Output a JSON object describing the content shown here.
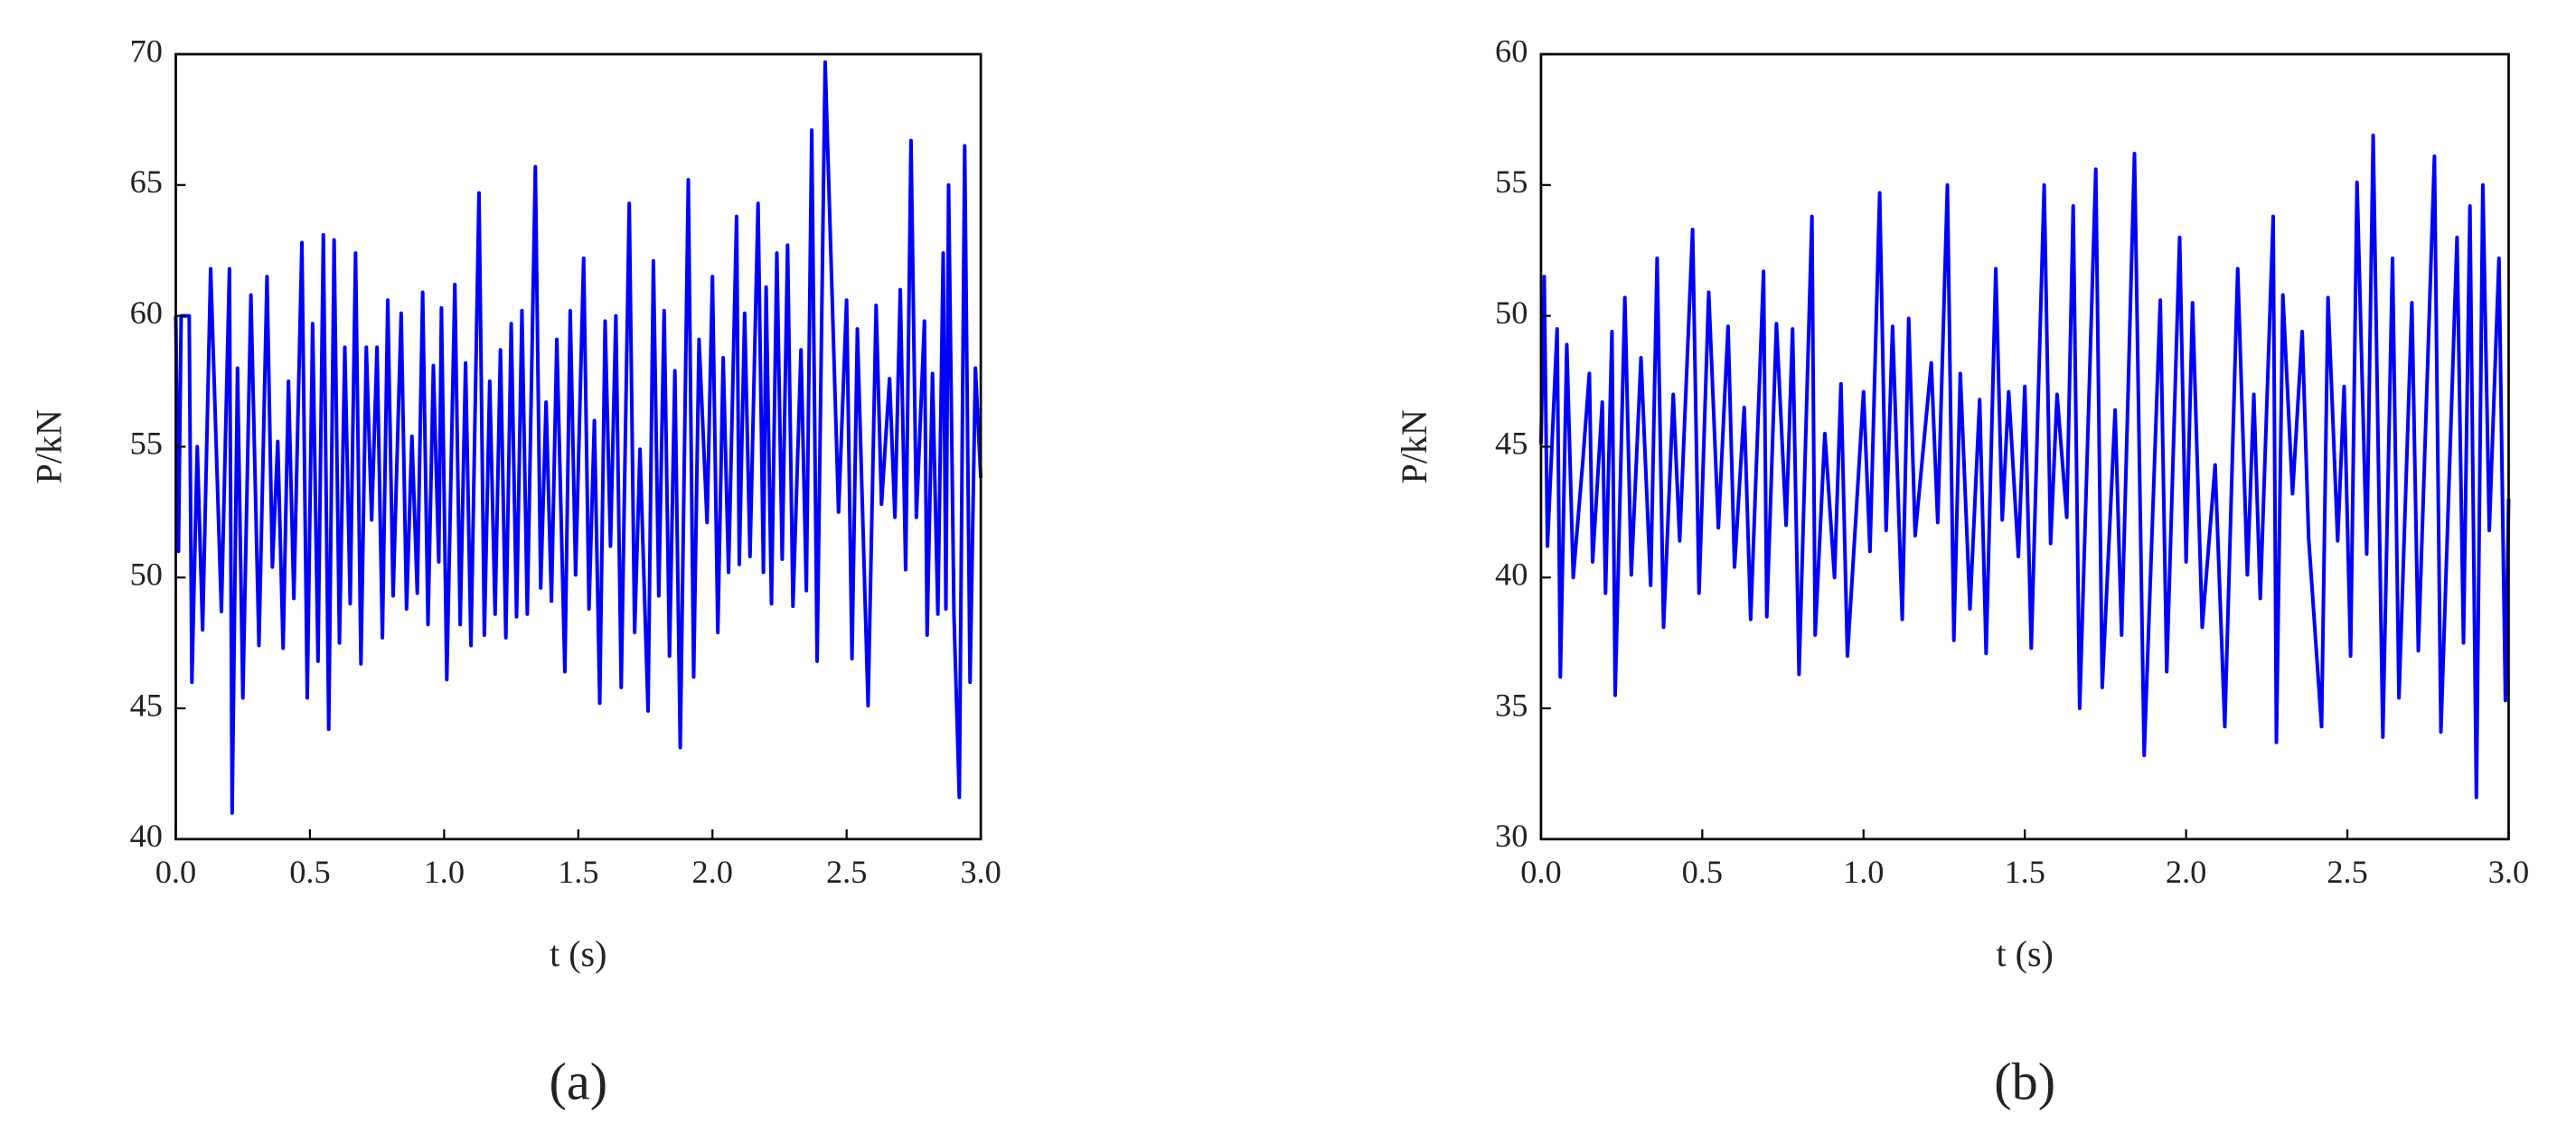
{
  "chart_data": [
    {
      "type": "line",
      "label": "(a)",
      "xlabel": "t (s)",
      "ylabel": "P/kN",
      "color": "#0000ff",
      "xlim": [
        0,
        3
      ],
      "ylim": [
        40,
        70
      ],
      "xticks": [
        {
          "value": 0,
          "label": "0.0"
        },
        0.5,
        {
          "value": 1,
          "label": "1.0"
        },
        1.5,
        {
          "value": 2,
          "label": "2.0"
        },
        2.5,
        {
          "value": 3,
          "label": "3.0"
        }
      ],
      "yticks": [
        40,
        45,
        50,
        55,
        60,
        65,
        70
      ],
      "x": [
        0,
        0.01,
        0.02,
        0.05,
        0.06,
        0.08,
        0.1,
        0.13,
        0.17,
        0.2,
        0.21,
        0.23,
        0.25,
        0.28,
        0.31,
        0.34,
        0.36,
        0.38,
        0.4,
        0.42,
        0.44,
        0.47,
        0.49,
        0.51,
        0.53,
        0.55,
        0.57,
        0.59,
        0.61,
        0.63,
        0.65,
        0.67,
        0.69,
        0.71,
        0.73,
        0.75,
        0.77,
        0.79,
        0.81,
        0.84,
        0.86,
        0.88,
        0.9,
        0.92,
        0.94,
        0.96,
        0.98,
        0.99,
        1.01,
        1.04,
        1.06,
        1.08,
        1.1,
        1.13,
        1.15,
        1.17,
        1.19,
        1.21,
        1.23,
        1.25,
        1.27,
        1.29,
        1.31,
        1.34,
        1.36,
        1.38,
        1.4,
        1.42,
        1.45,
        1.47,
        1.49,
        1.52,
        1.54,
        1.56,
        1.58,
        1.6,
        1.62,
        1.64,
        1.66,
        1.69,
        1.71,
        1.73,
        1.76,
        1.78,
        1.8,
        1.82,
        1.84,
        1.86,
        1.88,
        1.91,
        1.93,
        1.95,
        1.98,
        2.0,
        2.02,
        2.04,
        2.06,
        2.09,
        2.1,
        2.12,
        2.14,
        2.17,
        2.19,
        2.2,
        2.22,
        2.24,
        2.26,
        2.28,
        2.3,
        2.33,
        2.35,
        2.37,
        2.39,
        2.42,
        2.47,
        2.5,
        2.52,
        2.54,
        2.58,
        2.61,
        2.63,
        2.66,
        2.68,
        2.7,
        2.72,
        2.74,
        2.76,
        2.79,
        2.8,
        2.82,
        2.84,
        2.86,
        2.87,
        2.88,
        2.9,
        2.92,
        2.94,
        2.96,
        2.98,
        3.0
      ],
      "values": [
        60,
        51,
        60,
        60,
        46,
        55,
        48,
        61.8,
        48.7,
        61.8,
        41,
        58,
        45.4,
        60.8,
        47.4,
        61.5,
        50.4,
        55.2,
        47.3,
        57.5,
        49.2,
        62.8,
        45.4,
        59.7,
        46.8,
        63.1,
        44.2,
        62.9,
        47.5,
        58.8,
        49,
        62.4,
        46.7,
        58.8,
        52.2,
        58.8,
        47.7,
        60.6,
        49.3,
        60.1,
        48.8,
        55.4,
        49.4,
        60.9,
        48.2,
        58.1,
        50.6,
        60.3,
        46.1,
        61.2,
        48.2,
        58.2,
        47.4,
        64.7,
        47.8,
        57.5,
        48.6,
        58.7,
        47.7,
        59.7,
        48.5,
        60.2,
        48.6,
        65.7,
        49.6,
        56.7,
        49.1,
        59.1,
        46.4,
        60.2,
        50.1,
        62.2,
        48.8,
        56,
        45.2,
        59.8,
        51.2,
        60,
        45.8,
        64.3,
        47.9,
        54.9,
        44.9,
        62.1,
        49.3,
        60.2,
        47,
        57.9,
        43.5,
        65.2,
        46.2,
        59.1,
        52.1,
        61.5,
        47.9,
        58.4,
        50.2,
        63.8,
        50.5,
        60.1,
        50.8,
        64.3,
        50.2,
        61.1,
        49,
        62.4,
        50.7,
        62.7,
        48.9,
        58.7,
        49.5,
        67.1,
        46.8,
        69.7,
        52.5,
        60.6,
        46.9,
        59.5,
        45.1,
        60.4,
        52.8,
        57.6,
        52.3,
        61,
        50.3,
        66.7,
        52.3,
        59.8,
        47.8,
        57.8,
        48.6,
        62.4,
        48.8,
        65,
        48.6,
        41.6,
        66.5,
        46,
        58,
        53.8
      ]
    },
    {
      "type": "line",
      "label": "(b)",
      "xlabel": "t (s)",
      "ylabel": "P/kN",
      "color": "#0000ff",
      "xlim": [
        0,
        3
      ],
      "ylim": [
        30,
        60
      ],
      "xticks": [
        {
          "value": 0,
          "label": "0.0"
        },
        0.5,
        {
          "value": 1,
          "label": "1.0"
        },
        1.5,
        {
          "value": 2,
          "label": "2.0"
        },
        2.5,
        {
          "value": 3,
          "label": "3.0"
        }
      ],
      "yticks": [
        30,
        35,
        40,
        45,
        50,
        55,
        60
      ],
      "x": [
        0,
        0.01,
        0.02,
        0.05,
        0.06,
        0.08,
        0.1,
        0.13,
        0.15,
        0.16,
        0.19,
        0.2,
        0.22,
        0.23,
        0.26,
        0.28,
        0.31,
        0.34,
        0.36,
        0.38,
        0.41,
        0.43,
        0.47,
        0.49,
        0.52,
        0.55,
        0.58,
        0.6,
        0.63,
        0.65,
        0.69,
        0.7,
        0.73,
        0.76,
        0.78,
        0.8,
        0.84,
        0.85,
        0.88,
        0.91,
        0.93,
        0.95,
        1.0,
        1.02,
        1.05,
        1.07,
        1.09,
        1.12,
        1.14,
        1.16,
        1.21,
        1.23,
        1.26,
        1.28,
        1.3,
        1.33,
        1.36,
        1.38,
        1.41,
        1.43,
        1.45,
        1.48,
        1.5,
        1.52,
        1.56,
        1.58,
        1.6,
        1.63,
        1.65,
        1.67,
        1.72,
        1.74,
        1.78,
        1.8,
        1.84,
        1.87,
        1.92,
        1.94,
        1.98,
        2.0,
        2.02,
        2.05,
        2.09,
        2.12,
        2.16,
        2.19,
        2.21,
        2.23,
        2.27,
        2.28,
        2.3,
        2.33,
        2.36,
        2.38,
        2.42,
        2.44,
        2.47,
        2.49,
        2.51,
        2.53,
        2.56,
        2.58,
        2.61,
        2.64,
        2.66,
        2.7,
        2.72,
        2.77,
        2.79,
        2.84,
        2.86,
        2.88,
        2.9,
        2.92,
        2.94,
        2.97,
        2.99,
        3.0
      ],
      "values": [
        45.1,
        51.5,
        41.2,
        49.5,
        36.2,
        48.9,
        40,
        44.5,
        47.8,
        40.6,
        46.7,
        39.4,
        49.4,
        35.5,
        50.7,
        40.1,
        48.4,
        39.7,
        52.2,
        38.1,
        47,
        41.4,
        53.3,
        39.4,
        50.9,
        41.9,
        49.6,
        40.4,
        46.5,
        38.4,
        51.7,
        38.5,
        49.7,
        42,
        49.5,
        36.3,
        53.8,
        37.8,
        45.5,
        40,
        47.4,
        37,
        47.1,
        41,
        54.7,
        41.8,
        49.6,
        38.4,
        49.9,
        41.6,
        48.2,
        42.1,
        55,
        37.6,
        47.8,
        38.8,
        46.8,
        37.1,
        51.8,
        42.2,
        47.1,
        40.8,
        47.3,
        37.3,
        55,
        41.3,
        47,
        42.3,
        54.2,
        35,
        55.6,
        35.8,
        46.4,
        37.8,
        56.2,
        33.2,
        50.6,
        36.4,
        53,
        40.6,
        50.5,
        38.1,
        44.3,
        34.3,
        51.8,
        40.1,
        47,
        39.2,
        53.8,
        33.7,
        50.8,
        43.2,
        49.4,
        41.5,
        34.3,
        50.7,
        41.4,
        47.3,
        37,
        55.1,
        40.9,
        56.9,
        33.9,
        52.2,
        35.4,
        50.5,
        37.2,
        56.1,
        34.1,
        53,
        37.5,
        54.2,
        31.6,
        55,
        41.8,
        52.2,
        35.3,
        43
      ]
    }
  ]
}
